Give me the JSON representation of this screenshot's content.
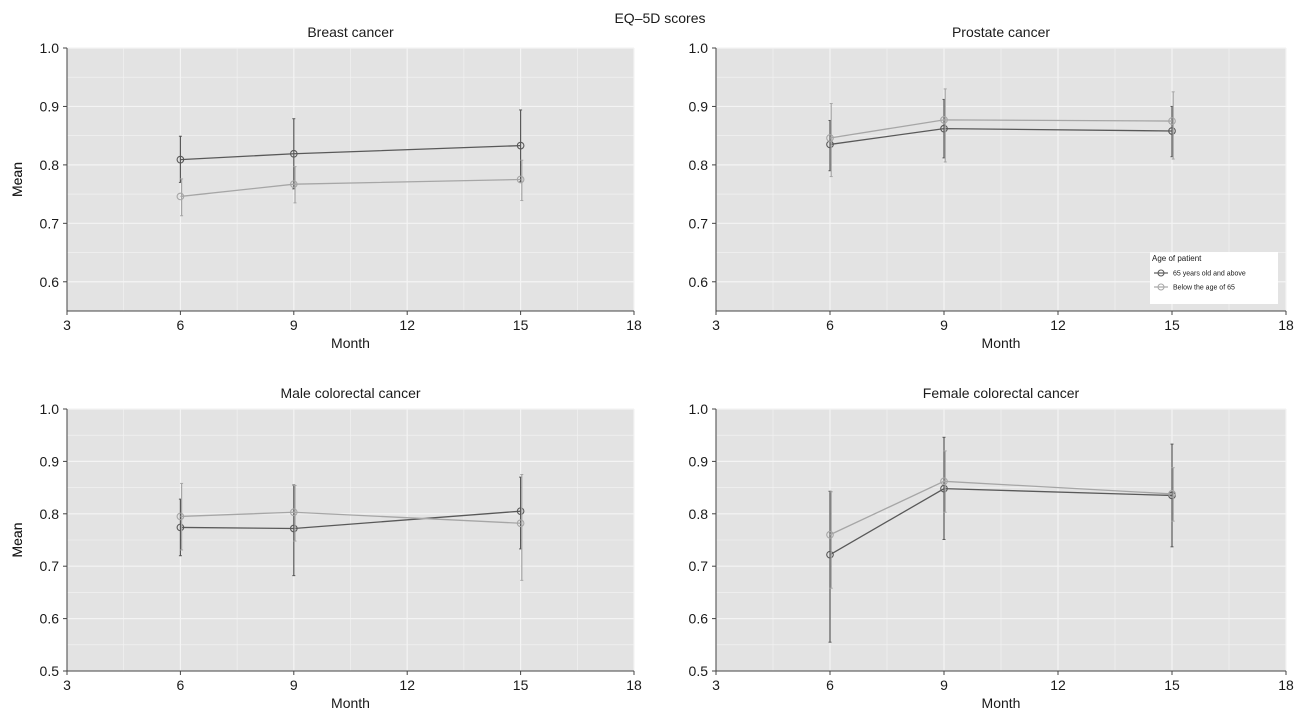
{
  "figure": {
    "title": "EQ–5D scores",
    "colors": {
      "panel_bg": "#e3e3e3",
      "grid": "#f4f4f4",
      "series_dark": "#595959",
      "series_light": "#a6a6a6"
    }
  },
  "chart_data": [
    {
      "type": "line",
      "title": "Breast cancer",
      "xlabel": "Month",
      "ylabel": "Mean",
      "xlim": [
        3,
        18
      ],
      "ylim": [
        0.55,
        1.0
      ],
      "xticks": [
        "3",
        "6",
        "9",
        "12",
        "15",
        "18"
      ],
      "yticks": [
        "0.6",
        "0.7",
        "0.8",
        "0.9",
        "1.0"
      ],
      "x": [
        6,
        9,
        15
      ],
      "series": [
        {
          "name": "65 years old and above",
          "color": "#595959",
          "values": [
            0.809,
            0.819,
            0.833
          ],
          "lower": [
            0.77,
            0.759,
            0.771
          ],
          "upper": [
            0.849,
            0.879,
            0.894
          ]
        },
        {
          "name": "Below the age of 65",
          "color": "#a6a6a6",
          "values": [
            0.746,
            0.767,
            0.775
          ],
          "lower": [
            0.713,
            0.735,
            0.739
          ],
          "upper": [
            0.776,
            0.797,
            0.808
          ]
        }
      ]
    },
    {
      "type": "line",
      "title": "Prostate cancer",
      "xlabel": "Month",
      "ylabel": "Mean",
      "xlim": [
        3,
        18
      ],
      "ylim": [
        0.55,
        1.0
      ],
      "xticks": [
        "3",
        "6",
        "9",
        "12",
        "15",
        "18"
      ],
      "yticks": [
        "0.6",
        "0.7",
        "0.8",
        "0.9",
        "1.0"
      ],
      "x": [
        6,
        9,
        15
      ],
      "legend": {
        "title": "Age of patient",
        "position": "lower-right"
      },
      "series": [
        {
          "name": "65 years old and above",
          "color": "#595959",
          "values": [
            0.835,
            0.862,
            0.858
          ],
          "lower": [
            0.79,
            0.812,
            0.814
          ],
          "upper": [
            0.876,
            0.912,
            0.9
          ]
        },
        {
          "name": "Below the age of 65",
          "color": "#a6a6a6",
          "values": [
            0.846,
            0.877,
            0.875
          ],
          "lower": [
            0.78,
            0.805,
            0.81
          ],
          "upper": [
            0.905,
            0.93,
            0.925
          ]
        }
      ]
    },
    {
      "type": "line",
      "title": "Male colorectal cancer",
      "xlabel": "Month",
      "ylabel": "Mean",
      "xlim": [
        3,
        18
      ],
      "ylim": [
        0.5,
        1.0
      ],
      "xticks": [
        "3",
        "6",
        "9",
        "12",
        "15",
        "18"
      ],
      "yticks": [
        "0.5",
        "0.6",
        "0.7",
        "0.8",
        "0.9",
        "1.0"
      ],
      "x": [
        6,
        9,
        15
      ],
      "series": [
        {
          "name": "65 years old and above",
          "color": "#595959",
          "values": [
            0.774,
            0.772,
            0.805
          ],
          "lower": [
            0.72,
            0.682,
            0.733
          ],
          "upper": [
            0.828,
            0.855,
            0.87
          ]
        },
        {
          "name": "Below the age of 65",
          "color": "#a6a6a6",
          "values": [
            0.795,
            0.803,
            0.782
          ],
          "lower": [
            0.731,
            0.748,
            0.673
          ],
          "upper": [
            0.858,
            0.854,
            0.875
          ]
        }
      ]
    },
    {
      "type": "line",
      "title": "Female colorectal cancer",
      "xlabel": "Month",
      "ylabel": "Mean",
      "xlim": [
        3,
        18
      ],
      "ylim": [
        0.5,
        1.0
      ],
      "xticks": [
        "3",
        "6",
        "9",
        "12",
        "15",
        "18"
      ],
      "yticks": [
        "0.5",
        "0.6",
        "0.7",
        "0.8",
        "0.9",
        "1.0"
      ],
      "x": [
        6,
        9,
        15
      ],
      "series": [
        {
          "name": "65 years old and above",
          "color": "#595959",
          "values": [
            0.722,
            0.848,
            0.835
          ],
          "lower": [
            0.555,
            0.751,
            0.737
          ],
          "upper": [
            0.843,
            0.946,
            0.933
          ]
        },
        {
          "name": "Below the age of 65",
          "color": "#a6a6a6",
          "values": [
            0.76,
            0.862,
            0.838
          ],
          "lower": [
            0.658,
            0.803,
            0.786
          ],
          "upper": [
            0.842,
            0.92,
            0.888
          ]
        }
      ]
    }
  ]
}
